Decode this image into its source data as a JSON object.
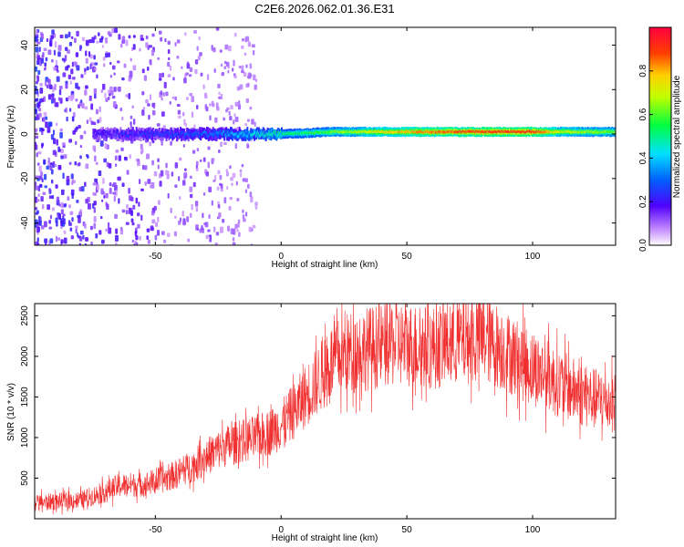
{
  "title": "C2E6.2026.062.01.36.E31",
  "colors": {
    "line": "#f03030",
    "spectrogram_low": "#e8d8f8",
    "spectrogram_mid": "#7a20f0",
    "spectrogram_high": "#ff2020"
  },
  "chart_data": [
    {
      "type": "heatmap",
      "title": "",
      "xlabel": "Height of straight line (km)",
      "ylabel": "Frequency (Hz)",
      "xlim": [
        -98,
        133
      ],
      "ylim": [
        -50,
        48
      ],
      "x_ticks": [
        -50,
        0,
        50,
        100
      ],
      "y_ticks": [
        -40,
        -20,
        0,
        20,
        40
      ],
      "grid": false,
      "colorbar": {
        "label": "Normalized spectral amplitude",
        "range": [
          0,
          1
        ],
        "ticks": [
          "0.0",
          "0.2",
          "0.4",
          "0.6",
          "0.8"
        ],
        "colormap": "rainbow (purple to red)"
      },
      "ridge": {
        "description_hidden": true,
        "x": [
          -75,
          -50,
          -30,
          -10,
          0,
          20,
          40,
          60,
          80,
          100,
          110,
          133
        ],
        "frequency_hz": [
          0,
          0,
          0,
          0,
          0,
          1,
          1,
          1,
          1,
          1,
          1,
          1
        ],
        "amplitude": [
          0.2,
          0.25,
          0.3,
          0.45,
          0.5,
          0.6,
          0.75,
          0.85,
          0.9,
          0.9,
          0.7,
          0.6
        ]
      },
      "noise_region_x": [
        -98,
        -35
      ]
    },
    {
      "type": "line",
      "title": "",
      "xlabel": "Height of straight line (km)",
      "ylabel": "SNR (10 * v/v)",
      "xlim": [
        -98,
        133
      ],
      "ylim": [
        0,
        2650
      ],
      "x_ticks": [
        -50,
        0,
        50,
        100
      ],
      "y_ticks": [
        500,
        1000,
        1500,
        2000,
        2500
      ],
      "grid": false,
      "series": [
        {
          "x": [
            -98,
            -90,
            -80,
            -75,
            -70,
            -65,
            -60,
            -55,
            -50,
            -45,
            -40,
            -35,
            -30,
            -25,
            -20,
            -15,
            -10,
            -5,
            0,
            5,
            10,
            15,
            20,
            25,
            30,
            35,
            40,
            45,
            50,
            55,
            60,
            65,
            70,
            75,
            80,
            85,
            90,
            95,
            100,
            105,
            110,
            115,
            120,
            125,
            133
          ],
          "values": [
            200,
            210,
            230,
            280,
            330,
            400,
            420,
            420,
            460,
            500,
            580,
            650,
            760,
            850,
            920,
            960,
            1000,
            1060,
            1150,
            1320,
            1520,
            1720,
            1930,
            2020,
            2080,
            2100,
            2130,
            2160,
            2150,
            2120,
            2110,
            2140,
            2180,
            2200,
            2220,
            2150,
            2050,
            1950,
            1850,
            1780,
            1680,
            1600,
            1520,
            1470,
            1430
          ]
        }
      ]
    }
  ]
}
